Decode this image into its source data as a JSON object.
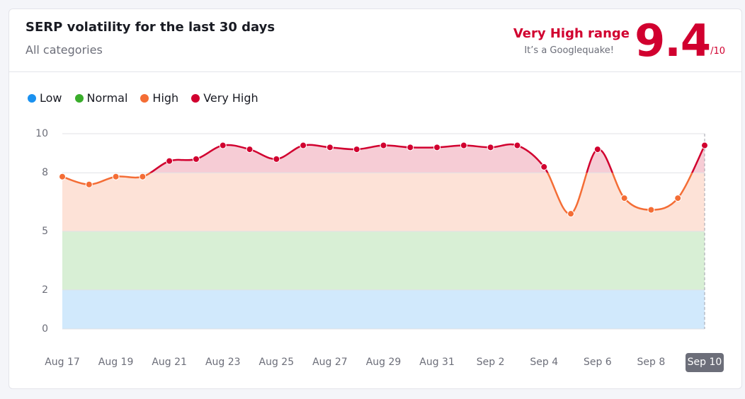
{
  "header": {
    "title": "SERP volatility for the last 30 days",
    "subtitle": "All categories",
    "range_label": "Very High range",
    "range_note": "It’s a Googlequake!",
    "score": 9.4,
    "score_max_label": "/10"
  },
  "chart_data": {
    "type": "line",
    "categories": [
      "Aug 17",
      null,
      "Aug 19",
      null,
      "Aug 21",
      null,
      "Aug 23",
      null,
      "Aug 25",
      null,
      "Aug 27",
      null,
      "Aug 29",
      null,
      "Aug 31",
      null,
      "Sep 2",
      null,
      "Sep 4",
      null,
      "Sep 6",
      null,
      "Sep 8",
      null,
      "Sep 10"
    ],
    "values": [
      7.8,
      7.4,
      7.8,
      7.8,
      8.6,
      8.7,
      9.4,
      9.2,
      8.7,
      9.4,
      9.3,
      9.2,
      9.4,
      9.3,
      9.3,
      9.4,
      9.3,
      9.4,
      8.3,
      5.9,
      9.2,
      6.7,
      6.1,
      6.7,
      9.4
    ],
    "ranges": [
      {
        "name": "Low",
        "color": "#1a91f0",
        "from": 0,
        "to": 2
      },
      {
        "name": "Normal",
        "color": "#3aad2b",
        "from": 2,
        "to": 5
      },
      {
        "name": "High",
        "color": "#f46d35",
        "from": 5,
        "to": 8
      },
      {
        "name": "Very High",
        "color": "#d1002f",
        "from": 8,
        "to": 10
      }
    ],
    "ylim": [
      0,
      10
    ],
    "yticks": [
      0,
      2,
      5,
      8,
      10
    ],
    "grid": true
  }
}
